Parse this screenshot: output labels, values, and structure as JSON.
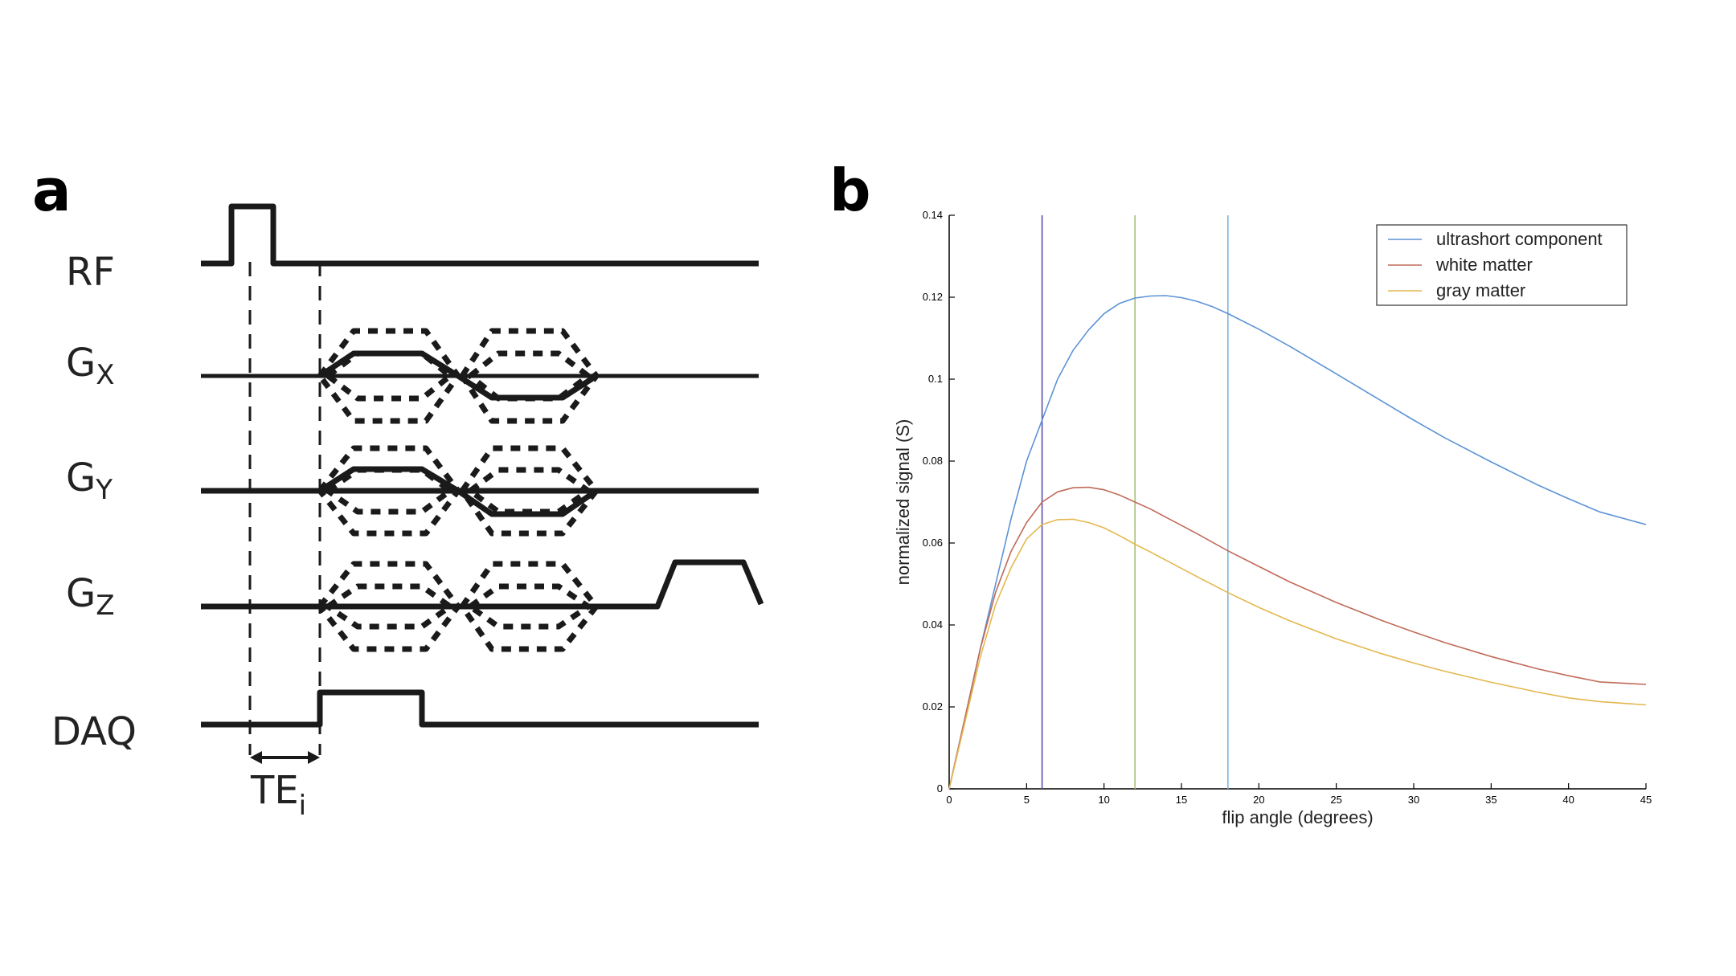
{
  "panels": {
    "a": {
      "letter": "a",
      "rows": [
        {
          "main": "RF",
          "sub": ""
        },
        {
          "main": "G",
          "sub": "X"
        },
        {
          "main": "G",
          "sub": "Y"
        },
        {
          "main": "G",
          "sub": "Z"
        },
        {
          "main": "DAQ",
          "sub": ""
        }
      ],
      "te_label": {
        "main": "TE",
        "sub": "i"
      }
    },
    "b": {
      "letter": "b"
    }
  },
  "chart_data": {
    "type": "line",
    "title": "",
    "xlabel": "flip angle (degrees)",
    "ylabel": "normalized signal (S)",
    "xlim": [
      0,
      45
    ],
    "ylim": [
      0,
      0.14
    ],
    "xticks": [
      0,
      5,
      10,
      15,
      20,
      25,
      30,
      35,
      40,
      45
    ],
    "yticks": [
      0,
      0.02,
      0.04,
      0.06,
      0.08,
      0.1,
      0.12,
      0.14
    ],
    "ytick_labels": [
      "0",
      "0.02",
      "0.04",
      "0.06",
      "0.08",
      "0.1",
      "0.12",
      "0.14"
    ],
    "grid": false,
    "legend_position": "top-right",
    "vertical_lines": [
      {
        "x": 6,
        "color": "#5b4fa8"
      },
      {
        "x": 12,
        "color": "#a8c070"
      },
      {
        "x": 18,
        "color": "#7ab8e0"
      }
    ],
    "series": [
      {
        "name": "ultrashort component",
        "color": "#5b93d6",
        "x": [
          0,
          1,
          2,
          3,
          4,
          5,
          6,
          7,
          8,
          9,
          10,
          11,
          12,
          13,
          14,
          15,
          16,
          17,
          18,
          20,
          22,
          25,
          28,
          30,
          32,
          35,
          38,
          40,
          42,
          45
        ],
        "y": [
          0,
          0.017,
          0.034,
          0.05,
          0.066,
          0.08,
          0.09,
          0.1,
          0.107,
          0.112,
          0.116,
          0.1185,
          0.1198,
          0.1203,
          0.1204,
          0.1199,
          0.119,
          0.1177,
          0.116,
          0.1122,
          0.108,
          0.1013,
          0.0945,
          0.09,
          0.0857,
          0.0798,
          0.0742,
          0.0708,
          0.0676,
          0.0645
        ]
      },
      {
        "name": "white matter",
        "color": "#c06a58",
        "x": [
          0,
          1,
          2,
          3,
          4,
          5,
          6,
          7,
          8,
          9,
          10,
          11,
          12,
          13,
          14,
          15,
          16,
          18,
          20,
          22,
          25,
          28,
          30,
          32,
          35,
          38,
          40,
          42,
          45
        ],
        "y": [
          0,
          0.017,
          0.034,
          0.048,
          0.058,
          0.065,
          0.07,
          0.0725,
          0.0735,
          0.0736,
          0.073,
          0.0717,
          0.07,
          0.0683,
          0.0663,
          0.0643,
          0.0623,
          0.0581,
          0.0543,
          0.0505,
          0.0455,
          0.041,
          0.0383,
          0.0357,
          0.0323,
          0.0293,
          0.0276,
          0.0261,
          0.0255
        ]
      },
      {
        "name": "gray matter",
        "color": "#e3b84e",
        "x": [
          0,
          1,
          2,
          3,
          4,
          5,
          6,
          7,
          8,
          9,
          10,
          11,
          12,
          13,
          14,
          15,
          16,
          18,
          20,
          22,
          25,
          28,
          30,
          32,
          35,
          38,
          40,
          42,
          45
        ],
        "y": [
          0,
          0.016,
          0.032,
          0.045,
          0.054,
          0.061,
          0.0645,
          0.0657,
          0.0658,
          0.065,
          0.0637,
          0.0618,
          0.0597,
          0.0578,
          0.0558,
          0.0538,
          0.0518,
          0.0479,
          0.0443,
          0.041,
          0.0366,
          0.0329,
          0.0307,
          0.0287,
          0.026,
          0.0236,
          0.0222,
          0.0213,
          0.0205
        ]
      }
    ]
  }
}
